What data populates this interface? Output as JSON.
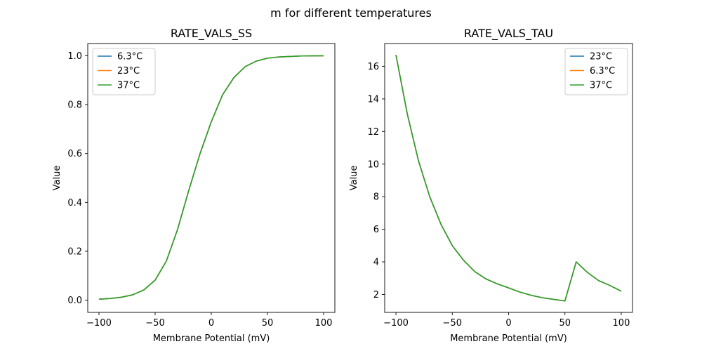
{
  "figure": {
    "suptitle": "m for different temperatures"
  },
  "chart_data": [
    {
      "type": "line",
      "title": "RATE_VALS_SS",
      "xlabel": "Membrane Potential (mV)",
      "ylabel": "Value",
      "xlim": [
        -110,
        110
      ],
      "ylim": [
        -0.05,
        1.05
      ],
      "xticks": [
        -100,
        -50,
        0,
        50,
        100
      ],
      "yticks": [
        0.0,
        0.2,
        0.4,
        0.6,
        0.8,
        1.0
      ],
      "ytick_labels": [
        "0.0",
        "0.2",
        "0.4",
        "0.6",
        "0.8",
        "1.0"
      ],
      "grid": false,
      "legend": "upper-left",
      "x": [
        -100,
        -90,
        -80,
        -70,
        -60,
        -50,
        -40,
        -30,
        -20,
        -10,
        0,
        10,
        20,
        30,
        40,
        50,
        60,
        70,
        80,
        90,
        100
      ],
      "series": [
        {
          "name": "6.3°C",
          "color": "#1f77b4",
          "values": [
            0.004,
            0.007,
            0.012,
            0.022,
            0.042,
            0.082,
            0.16,
            0.29,
            0.45,
            0.6,
            0.73,
            0.84,
            0.91,
            0.955,
            0.978,
            0.99,
            0.995,
            0.997,
            0.999,
            0.9995,
            1.0
          ]
        },
        {
          "name": "23°C",
          "color": "#ff7f0e",
          "values": [
            0.004,
            0.007,
            0.012,
            0.022,
            0.042,
            0.082,
            0.16,
            0.29,
            0.45,
            0.6,
            0.73,
            0.84,
            0.91,
            0.955,
            0.978,
            0.99,
            0.995,
            0.997,
            0.999,
            0.9995,
            1.0
          ]
        },
        {
          "name": "37°C",
          "color": "#2ca02c",
          "values": [
            0.004,
            0.007,
            0.012,
            0.022,
            0.042,
            0.082,
            0.16,
            0.29,
            0.45,
            0.6,
            0.73,
            0.84,
            0.91,
            0.955,
            0.978,
            0.99,
            0.995,
            0.997,
            0.999,
            0.9995,
            1.0
          ]
        }
      ]
    },
    {
      "type": "line",
      "title": "RATE_VALS_TAU",
      "xlabel": "Membrane Potential (mV)",
      "ylabel": "Value",
      "xlim": [
        -110,
        110
      ],
      "ylim": [
        0.9,
        17.4
      ],
      "xticks": [
        -100,
        -50,
        0,
        50,
        100
      ],
      "yticks": [
        2,
        4,
        6,
        8,
        10,
        12,
        14,
        16
      ],
      "ytick_labels": [
        "2",
        "4",
        "6",
        "8",
        "10",
        "12",
        "14",
        "16"
      ],
      "grid": false,
      "legend": "upper-right",
      "x": [
        -100,
        -90,
        -80,
        -70,
        -60,
        -50,
        -40,
        -30,
        -20,
        -10,
        0,
        10,
        20,
        30,
        40,
        50,
        60,
        70,
        80,
        90,
        100
      ],
      "series": [
        {
          "name": "23°C",
          "color": "#1f77b4",
          "values": [
            16.7,
            13.1,
            10.2,
            8.0,
            6.3,
            5.0,
            4.1,
            3.4,
            2.95,
            2.65,
            2.4,
            2.15,
            1.95,
            1.8,
            1.7,
            1.6,
            4.0,
            3.35,
            2.85,
            2.55,
            2.2
          ]
        },
        {
          "name": "6.3°C",
          "color": "#ff7f0e",
          "values": [
            16.7,
            13.1,
            10.2,
            8.0,
            6.3,
            5.0,
            4.1,
            3.4,
            2.95,
            2.65,
            2.4,
            2.15,
            1.95,
            1.8,
            1.7,
            1.6,
            4.0,
            3.35,
            2.85,
            2.55,
            2.2
          ]
        },
        {
          "name": "37°C",
          "color": "#2ca02c",
          "values": [
            16.7,
            13.1,
            10.2,
            8.0,
            6.3,
            5.0,
            4.1,
            3.4,
            2.95,
            2.65,
            2.4,
            2.15,
            1.95,
            1.8,
            1.7,
            1.6,
            4.0,
            3.35,
            2.85,
            2.55,
            2.2
          ]
        }
      ]
    }
  ]
}
